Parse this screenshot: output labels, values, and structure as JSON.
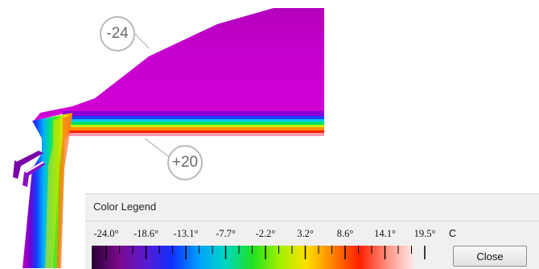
{
  "callouts": {
    "top": "-24",
    "bottom": "+20"
  },
  "legend": {
    "title": "Color Legend",
    "unit": "C",
    "ticks": [
      "-24.0°",
      "-18.6°",
      "-13.1°",
      "-7.7°",
      "-2.2°",
      "3.2°",
      "8.6°",
      "14.1°",
      "19.5°"
    ],
    "close_label": "Close",
    "colors": [
      "#2a0034",
      "#7a0a8c",
      "#5a1ad0",
      "#1030ff",
      "#00a0ff",
      "#00d8c0",
      "#20e020",
      "#a0f000",
      "#ffe000",
      "#ff8000",
      "#ff2000",
      "#ff9080",
      "#ffe8e8"
    ]
  }
}
